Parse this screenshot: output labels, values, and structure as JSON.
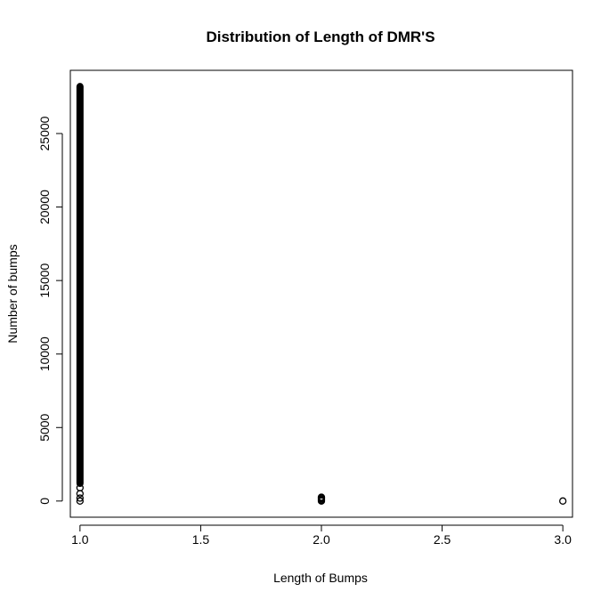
{
  "chart_data": {
    "type": "scatter",
    "title": "Distribution of Length of DMR'S",
    "xlabel": "Length of Bumps",
    "ylabel": "Number of bumps",
    "xlim": [
      0.96,
      3.04
    ],
    "ylim": [
      -1100,
      29300
    ],
    "x_ticks": [
      1.0,
      1.5,
      2.0,
      2.5,
      3.0
    ],
    "x_tick_labels": [
      "1.0",
      "1.5",
      "2.0",
      "2.5",
      "3.0"
    ],
    "y_ticks": [
      0,
      5000,
      10000,
      15000,
      20000,
      25000
    ],
    "y_tick_labels": [
      "0",
      "5000",
      "10000",
      "15000",
      "20000",
      "25000"
    ],
    "grid": false,
    "marker": "open-circle",
    "series": [
      {
        "name": "bumps",
        "color": "#000000",
        "segments": [
          {
            "x": 1.0,
            "y_start": 0,
            "y_end": 28200,
            "note": "dense continuous column of points"
          }
        ],
        "points": [
          {
            "x": 1.0,
            "y": 0
          },
          {
            "x": 2.0,
            "y": 0
          },
          {
            "x": 2.0,
            "y": 60
          },
          {
            "x": 2.0,
            "y": 130
          },
          {
            "x": 2.0,
            "y": 200
          },
          {
            "x": 2.0,
            "y": 260
          },
          {
            "x": 3.0,
            "y": 0
          }
        ]
      }
    ]
  }
}
